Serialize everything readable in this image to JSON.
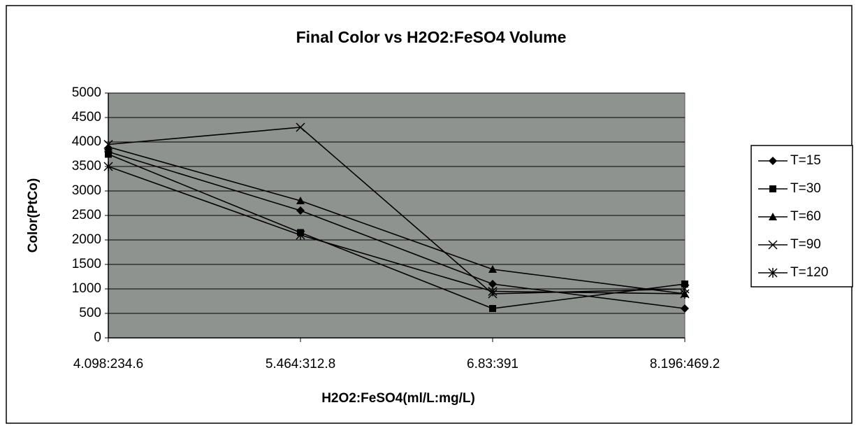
{
  "chart_data": {
    "type": "line",
    "title": "Final Color vs H2O2:FeSO4 Volume",
    "x_label": "H2O2:FeSO4(ml/L:mg/L)",
    "y_label": "Color(PtCo)",
    "categories": [
      "4.098:234.6",
      "5.464:312.8",
      "6.83:391",
      "8.196:469.2"
    ],
    "series": [
      {
        "name": "T=15",
        "color": "#000000",
        "marker": "diamond",
        "values": [
          3800,
          2600,
          1100,
          600
        ]
      },
      {
        "name": "T=30",
        "color": "#000000",
        "marker": "square",
        "values": [
          3750,
          2150,
          600,
          1100
        ]
      },
      {
        "name": "T=60",
        "color": "#000000",
        "marker": "triangle",
        "values": [
          3900,
          2800,
          1400,
          900
        ]
      },
      {
        "name": "T=90",
        "color": "#000000",
        "marker": "x",
        "values": [
          3950,
          4300,
          900,
          1000
        ]
      },
      {
        "name": "T=120",
        "color": "#000000",
        "marker": "star",
        "values": [
          3500,
          2100,
          950,
          900
        ]
      }
    ],
    "ylim": [
      0,
      5000
    ],
    "yticks": [
      0,
      500,
      1000,
      1500,
      2000,
      2500,
      3000,
      3500,
      4000,
      4500,
      5000
    ],
    "grid": true,
    "legend": "right"
  }
}
